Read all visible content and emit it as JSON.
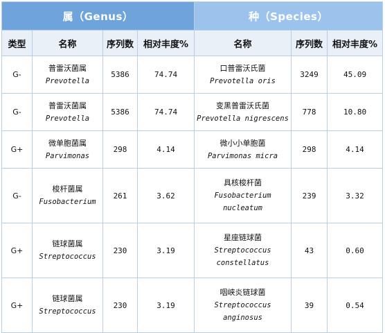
{
  "header": {
    "genus_label": "属（Genus）",
    "species_label": "种（Species）"
  },
  "columns": {
    "type": "类型",
    "genus_name": "名称",
    "genus_seq": "序列数",
    "genus_abund": "相对丰度%",
    "species_name": "名称",
    "species_seq": "序列数",
    "species_abund": "相对丰度%"
  },
  "rows": [
    {
      "type": "G-",
      "genus_cn": "普雷沃菌属",
      "genus_lat": "Prevotella",
      "genus_seq": "5386",
      "genus_abund": "74.74",
      "species_cn": "口普雷沃氏菌",
      "species_lat": [
        "Prevotella oris"
      ],
      "species_seq": "3249",
      "species_abund": "45.09"
    },
    {
      "type": "G-",
      "genus_cn": "普雷沃菌属",
      "genus_lat": "Prevotella",
      "genus_seq": "5386",
      "genus_abund": "74.74",
      "species_cn": "变黑普雷沃氏菌",
      "species_lat": [
        "Prevotella nigrescens"
      ],
      "species_seq": "778",
      "species_abund": "10.80"
    },
    {
      "type": "G+",
      "genus_cn": "微单胞菌属",
      "genus_lat": "Parvimonas",
      "genus_seq": "298",
      "genus_abund": "4.14",
      "species_cn": "微小小单胞菌",
      "species_lat": [
        "Parvimonas micra"
      ],
      "species_seq": "298",
      "species_abund": "4.14"
    },
    {
      "type": "G-",
      "genus_cn": "梭杆菌属",
      "genus_lat": "Fusobacterium",
      "genus_seq": "261",
      "genus_abund": "3.62",
      "species_cn": "具核梭杆菌",
      "species_lat": [
        "Fusobacterium",
        "nucleatum"
      ],
      "species_seq": "239",
      "species_abund": "3.32"
    },
    {
      "type": "G+",
      "genus_cn": "链球菌属",
      "genus_lat": "Streptococcus",
      "genus_seq": "230",
      "genus_abund": "3.19",
      "species_cn": "星座链球菌",
      "species_lat": [
        "Streptococcus",
        "constellatus"
      ],
      "species_seq": "43",
      "species_abund": "0.60"
    },
    {
      "type": "G+",
      "genus_cn": "链球菌属",
      "genus_lat": "Streptococcus",
      "genus_seq": "230",
      "genus_abund": "3.19",
      "species_cn": "咽峡炎链球菌",
      "species_lat": [
        "Streptococcus",
        "anginosus"
      ],
      "species_seq": "39",
      "species_abund": "0.54"
    }
  ],
  "colors": {
    "genus_band": "#6fa3dc",
    "species_band": "#9cc3ec",
    "header_row": "#e9f0f8",
    "grid": "#b9cde6"
  }
}
